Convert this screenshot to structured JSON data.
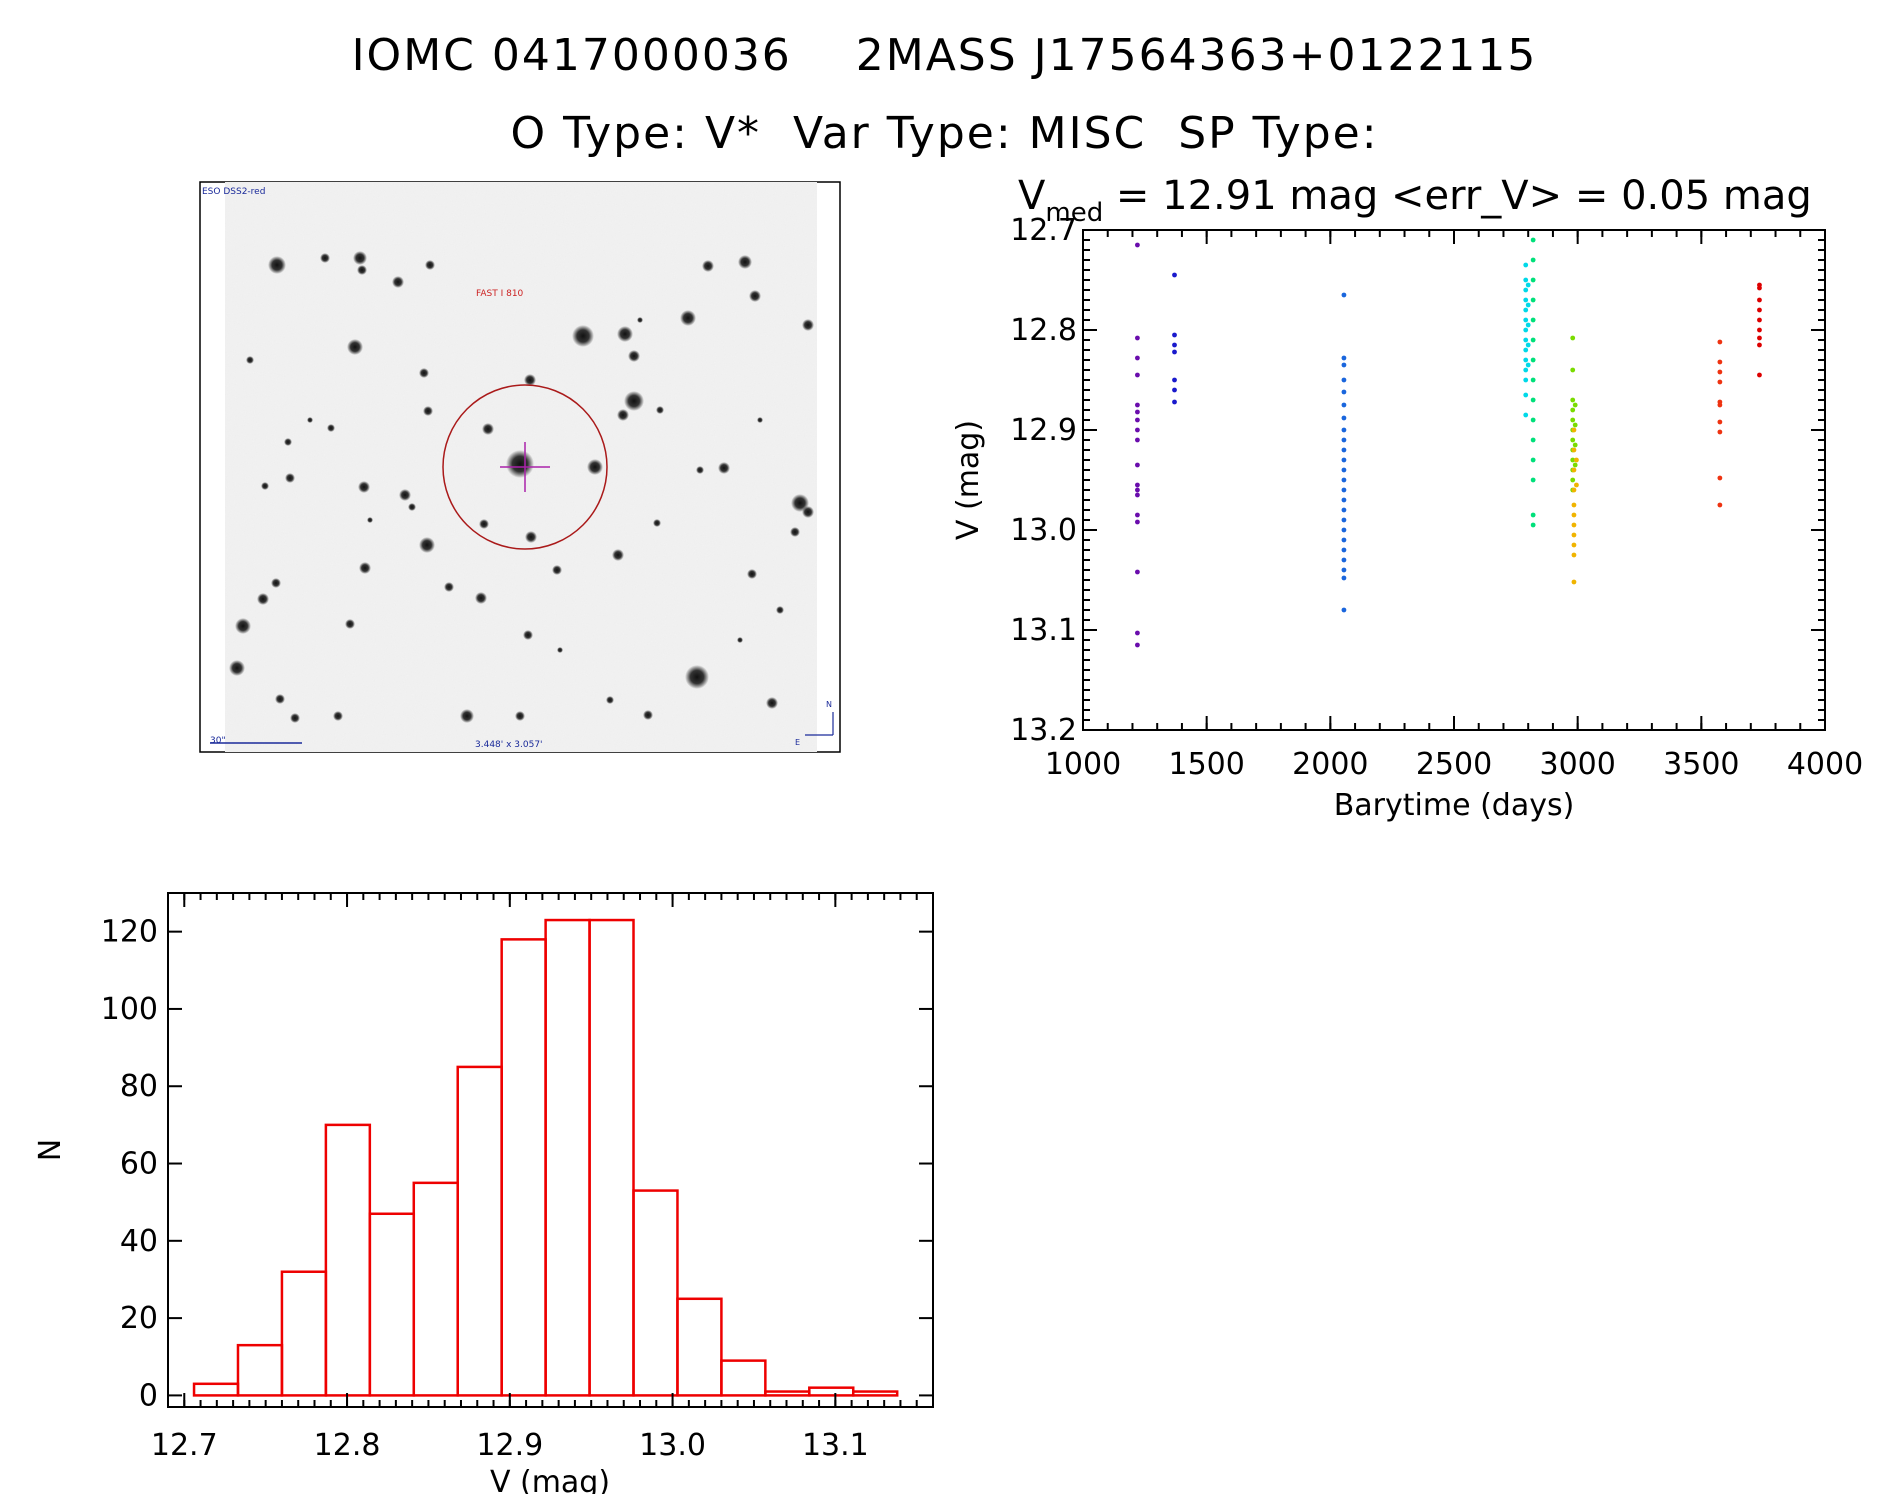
{
  "header": {
    "line1": "IOMC 0417000036    2MASS J17564363+0122115",
    "line2": "O Type: V*  Var Type: MISC  SP Type:"
  },
  "image": {
    "top_left_label": "ESO DSS2-red",
    "target_label": "FAST I 810",
    "scale_label": "30\"",
    "size_label": "3.448' x 3.057'",
    "north": "N",
    "east": "E"
  },
  "lightcurve": {
    "subtitle_prefix": "V",
    "subtitle_subscript": "med",
    "subtitle_rest": " = 12.91 mag <err_V> = 0.05 mag"
  },
  "chart_data": [
    {
      "type": "scatter",
      "xlabel": "Barytime (days)",
      "ylabel": "V (mag)",
      "xlim": [
        1000,
        4000
      ],
      "ylim": [
        13.2,
        12.7
      ],
      "y_inverted": true,
      "xticks": [
        "1000",
        "1500",
        "2000",
        "2500",
        "3000",
        "3500",
        "4000"
      ],
      "yticks": [
        "12.7",
        "12.8",
        "12.9",
        "13.0",
        "13.1",
        "13.2"
      ],
      "series": [
        {
          "color": "#6a0dad",
          "points": [
            [
              1220,
              12.715
            ],
            [
              1220,
              12.808
            ],
            [
              1220,
              12.828
            ],
            [
              1220,
              12.845
            ],
            [
              1220,
              12.875
            ],
            [
              1220,
              12.882
            ],
            [
              1220,
              12.89
            ],
            [
              1220,
              12.9
            ],
            [
              1220,
              12.91
            ],
            [
              1220,
              12.935
            ],
            [
              1220,
              12.955
            ],
            [
              1220,
              12.96
            ],
            [
              1220,
              12.965
            ],
            [
              1220,
              12.985
            ],
            [
              1220,
              12.992
            ],
            [
              1220,
              13.042
            ],
            [
              1220,
              13.103
            ],
            [
              1220,
              13.115
            ]
          ]
        },
        {
          "color": "#1a1acc",
          "points": [
            [
              1370,
              12.745
            ],
            [
              1370,
              12.805
            ],
            [
              1370,
              12.815
            ],
            [
              1370,
              12.822
            ],
            [
              1370,
              12.85
            ],
            [
              1370,
              12.86
            ],
            [
              1370,
              12.872
            ]
          ]
        },
        {
          "color": "#1a66dd",
          "points": [
            [
              2055,
              12.765
            ],
            [
              2055,
              12.828
            ],
            [
              2055,
              12.835
            ],
            [
              2055,
              12.85
            ],
            [
              2055,
              12.862
            ],
            [
              2055,
              12.875
            ],
            [
              2055,
              12.888
            ],
            [
              2055,
              12.9
            ],
            [
              2055,
              12.91
            ],
            [
              2055,
              12.92
            ],
            [
              2055,
              12.93
            ],
            [
              2055,
              12.94
            ],
            [
              2055,
              12.95
            ],
            [
              2055,
              12.96
            ],
            [
              2055,
              12.97
            ],
            [
              2055,
              12.98
            ],
            [
              2055,
              12.99
            ],
            [
              2055,
              13.0
            ],
            [
              2055,
              13.01
            ],
            [
              2055,
              13.02
            ],
            [
              2055,
              13.03
            ],
            [
              2055,
              13.04
            ],
            [
              2055,
              13.048
            ],
            [
              2055,
              13.08
            ]
          ]
        },
        {
          "color": "#00d8e8",
          "points": [
            [
              2790,
              12.735
            ],
            [
              2790,
              12.75
            ],
            [
              2790,
              12.76
            ],
            [
              2790,
              12.77
            ],
            [
              2790,
              12.78
            ],
            [
              2790,
              12.79
            ],
            [
              2790,
              12.8
            ],
            [
              2790,
              12.81
            ],
            [
              2790,
              12.82
            ],
            [
              2790,
              12.83
            ],
            [
              2790,
              12.84
            ],
            [
              2790,
              12.85
            ],
            [
              2790,
              12.865
            ],
            [
              2790,
              12.885
            ],
            [
              2800,
              12.755
            ],
            [
              2800,
              12.775
            ],
            [
              2800,
              12.795
            ],
            [
              2800,
              12.815
            ],
            [
              2800,
              12.835
            ]
          ]
        },
        {
          "color": "#00e07a",
          "points": [
            [
              2820,
              12.71
            ],
            [
              2820,
              12.73
            ],
            [
              2820,
              12.75
            ],
            [
              2820,
              12.77
            ],
            [
              2820,
              12.79
            ],
            [
              2820,
              12.81
            ],
            [
              2820,
              12.83
            ],
            [
              2820,
              12.85
            ],
            [
              2820,
              12.87
            ],
            [
              2820,
              12.89
            ],
            [
              2820,
              12.91
            ],
            [
              2820,
              12.93
            ],
            [
              2820,
              12.95
            ],
            [
              2820,
              12.985
            ],
            [
              2820,
              12.995
            ]
          ]
        },
        {
          "color": "#7adc00",
          "points": [
            [
              2980,
              12.808
            ],
            [
              2980,
              12.84
            ],
            [
              2980,
              12.87
            ],
            [
              2980,
              12.88
            ],
            [
              2980,
              12.89
            ],
            [
              2980,
              12.9
            ],
            [
              2980,
              12.91
            ],
            [
              2980,
              12.92
            ],
            [
              2980,
              12.93
            ],
            [
              2980,
              12.94
            ],
            [
              2980,
              12.95
            ],
            [
              2980,
              12.96
            ],
            [
              2990,
              12.875
            ],
            [
              2990,
              12.895
            ],
            [
              2990,
              12.915
            ],
            [
              2990,
              12.935
            ]
          ]
        },
        {
          "color": "#f0b400",
          "points": [
            [
              2985,
              12.9
            ],
            [
              2985,
              12.92
            ],
            [
              2985,
              12.94
            ],
            [
              2985,
              12.96
            ],
            [
              2985,
              12.975
            ],
            [
              2985,
              12.985
            ],
            [
              2985,
              12.995
            ],
            [
              2985,
              13.005
            ],
            [
              2985,
              13.015
            ],
            [
              2985,
              13.025
            ],
            [
              2985,
              13.052
            ],
            [
              2995,
              12.93
            ],
            [
              2995,
              12.955
            ]
          ]
        },
        {
          "color": "#ee3311",
          "points": [
            [
              3575,
              12.812
            ],
            [
              3575,
              12.832
            ],
            [
              3575,
              12.842
            ],
            [
              3575,
              12.852
            ],
            [
              3575,
              12.872
            ],
            [
              3575,
              12.875
            ],
            [
              3575,
              12.892
            ],
            [
              3575,
              12.902
            ],
            [
              3575,
              12.948
            ],
            [
              3575,
              12.975
            ]
          ]
        },
        {
          "color": "#dd0000",
          "points": [
            [
              3735,
              12.755
            ],
            [
              3735,
              12.758
            ],
            [
              3735,
              12.77
            ],
            [
              3735,
              12.78
            ],
            [
              3735,
              12.79
            ],
            [
              3735,
              12.8
            ],
            [
              3735,
              12.808
            ],
            [
              3735,
              12.815
            ],
            [
              3735,
              12.845
            ]
          ]
        }
      ]
    },
    {
      "type": "bar",
      "xlabel": "V (mag)",
      "ylabel": "N",
      "xlim": [
        12.69,
        13.16
      ],
      "ylim": [
        -3,
        130
      ],
      "xticks": [
        "12.7",
        "12.8",
        "12.9",
        "13.0",
        "13.1"
      ],
      "yticks": [
        "0",
        "20",
        "40",
        "60",
        "80",
        "100",
        "120"
      ],
      "bin_edges": [
        12.706,
        12.733,
        12.76,
        12.787,
        12.814,
        12.841,
        12.868,
        12.895,
        12.922,
        12.949,
        12.976,
        13.003,
        13.03,
        13.057,
        13.084,
        13.111,
        13.138
      ],
      "values": [
        3,
        13,
        32,
        70,
        47,
        55,
        85,
        118,
        123,
        123,
        53,
        25,
        9,
        1,
        2,
        1
      ],
      "color": "#ee0000"
    }
  ]
}
